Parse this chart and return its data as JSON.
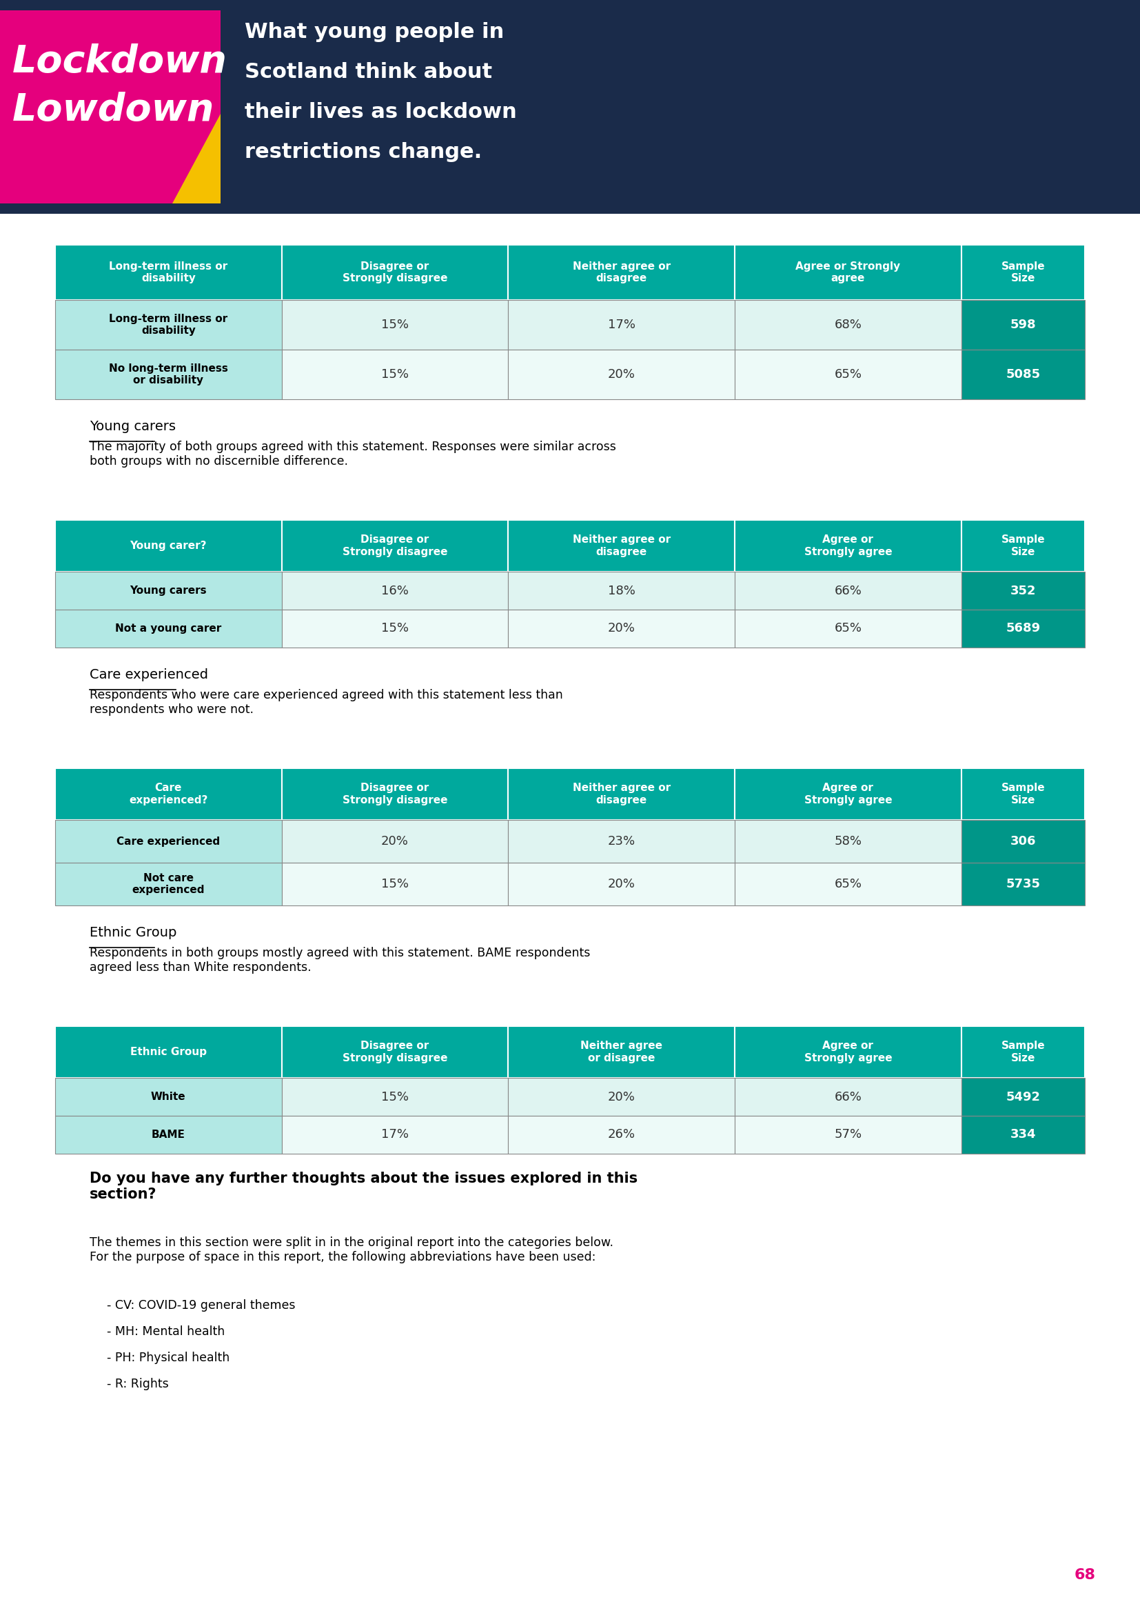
{
  "header_bg": "#1a2b4a",
  "teal_header": "#00a99d",
  "teal_light": "#b2e8e4",
  "teal_dark": "#009688",
  "page_bg": "#ffffff",
  "table1": {
    "col_headers": [
      "Long-term illness or\ndisability",
      "Disagree or\nStrongly disagree",
      "Neither agree or\ndisagree",
      "Agree or Strongly\nagree",
      "Sample\nSize"
    ],
    "rows": [
      [
        "Long-term illness or\ndisability",
        "15%",
        "17%",
        "68%",
        "598"
      ],
      [
        "No long-term illness\nor disability",
        "15%",
        "20%",
        "65%",
        "5085"
      ]
    ]
  },
  "section1_title": "Young carers",
  "section1_text": "The majority of both groups agreed with this statement. Responses were similar across\nboth groups with no discernible difference.",
  "table2": {
    "col_headers": [
      "Young carer?",
      "Disagree or\nStrongly disagree",
      "Neither agree or\ndisagree",
      "Agree or\nStrongly agree",
      "Sample\nSize"
    ],
    "rows": [
      [
        "Young carers",
        "16%",
        "18%",
        "66%",
        "352"
      ],
      [
        "Not a young carer",
        "15%",
        "20%",
        "65%",
        "5689"
      ]
    ]
  },
  "section2_title": "Care experienced",
  "section2_text": "Respondents who were care experienced agreed with this statement less than\nrespondents who were not.",
  "table3": {
    "col_headers": [
      "Care\nexperienced?",
      "Disagree or\nStrongly disagree",
      "Neither agree or\ndisagree",
      "Agree or\nStrongly agree",
      "Sample\nSize"
    ],
    "rows": [
      [
        "Care experienced",
        "20%",
        "23%",
        "58%",
        "306"
      ],
      [
        "Not care\nexperienced",
        "15%",
        "20%",
        "65%",
        "5735"
      ]
    ]
  },
  "section3_title": "Ethnic Group",
  "section3_text": "Respondents in both groups mostly agreed with this statement. BAME respondents\nagreed less than White respondents.",
  "table4": {
    "col_headers": [
      "Ethnic Group",
      "Disagree or\nStrongly disagree",
      "Neither agree\nor disagree",
      "Agree or\nStrongly agree",
      "Sample\nSize"
    ],
    "rows": [
      [
        "White",
        "15%",
        "20%",
        "66%",
        "5492"
      ],
      [
        "BAME",
        "17%",
        "26%",
        "57%",
        "334"
      ]
    ]
  },
  "footer_bold_text": "Do you have any further thoughts about the issues explored in this\nsection?",
  "footer_text": "The themes in this section were split in in the original report into the categories below.\nFor the purpose of space in this report, the following abbreviations have been used:",
  "footer_bullets": [
    "CV: COVID-19 general themes",
    "MH: Mental health",
    "PH: Physical health",
    "R: Rights"
  ],
  "page_number": "68",
  "magenta": "#e5007d",
  "yellow": "#f5c000"
}
